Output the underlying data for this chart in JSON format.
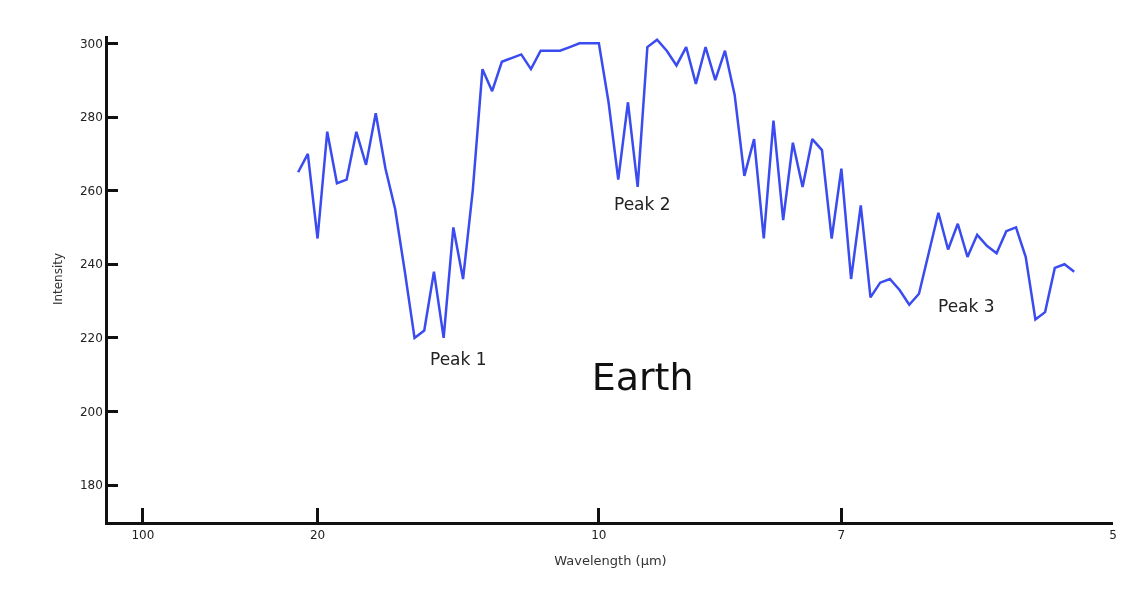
{
  "chart_data": {
    "type": "line",
    "title": "Earth",
    "xlabel": "Wavelength (µm)",
    "ylabel": "Intensity",
    "categories": [
      null,
      null,
      null,
      "100",
      null,
      null,
      null,
      null,
      null,
      null,
      null,
      null,
      null,
      null,
      null,
      null,
      null,
      null,
      null,
      null,
      null,
      "20",
      null,
      null,
      null,
      null,
      null,
      null,
      null,
      null,
      null,
      null,
      null,
      null,
      null,
      null,
      null,
      null,
      null,
      null,
      null,
      null,
      null,
      null,
      null,
      null,
      null,
      null,
      null,
      null,
      "10",
      null,
      null,
      null,
      null,
      null,
      null,
      null,
      null,
      null,
      null,
      null,
      null,
      null,
      null,
      null,
      null,
      null,
      null,
      null,
      null,
      null,
      null,
      null,
      null,
      "7",
      null,
      null,
      null,
      null,
      null,
      null,
      null,
      null,
      null,
      null,
      null,
      null,
      null,
      null,
      null,
      null,
      null,
      null,
      null,
      null,
      null,
      null,
      null,
      null,
      null,
      null,
      null,
      "5"
    ],
    "ylim": [
      170,
      302
    ],
    "yticks": [
      180,
      200,
      220,
      240,
      260,
      280,
      300
    ],
    "marker": "none",
    "line_style": "solid",
    "series": [
      {
        "color": "#3a4bef",
        "values": [
          null,
          null,
          null,
          null,
          null,
          null,
          null,
          null,
          null,
          null,
          null,
          null,
          null,
          null,
          null,
          null,
          null,
          null,
          null,
          265,
          270,
          247,
          276,
          262,
          263,
          276,
          267,
          281,
          266,
          255,
          238,
          220,
          222,
          238,
          220,
          250,
          236,
          260,
          293,
          287,
          295,
          296,
          297,
          293,
          298,
          298,
          298,
          299,
          300,
          300,
          300,
          284,
          263,
          284,
          261,
          299,
          301,
          298,
          294,
          299,
          289,
          299,
          290,
          298,
          286,
          264,
          274,
          247,
          279,
          252,
          273,
          261,
          274,
          271,
          247,
          266,
          236,
          256,
          231,
          235,
          236,
          233,
          229,
          232,
          243,
          254,
          244,
          251,
          242,
          248,
          245,
          243,
          249,
          250,
          242,
          225,
          227,
          239,
          240,
          238,
          null,
          null,
          null,
          null
        ]
      }
    ],
    "annotations": [
      "Peak 1",
      "Peak 2",
      "Peak 3"
    ]
  }
}
